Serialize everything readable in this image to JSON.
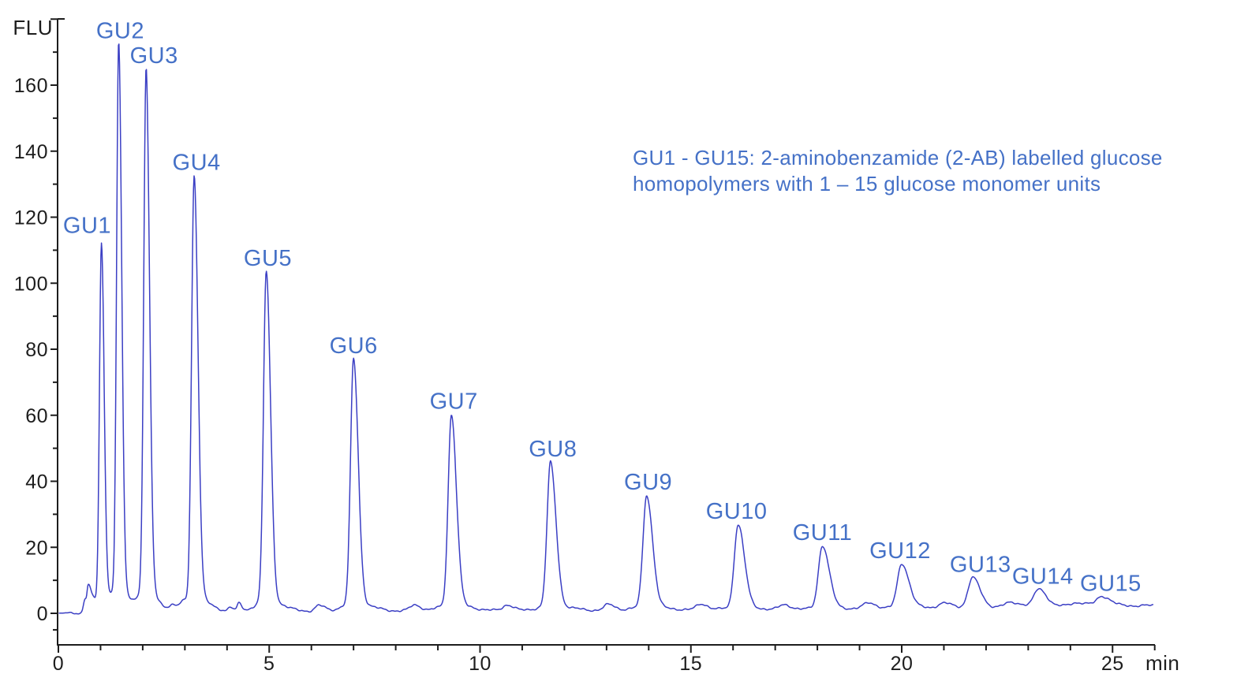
{
  "page": {
    "background_color": "#ffffff"
  },
  "chart_data": {
    "type": "line",
    "kind": "chromatogram",
    "trace_color": "#3b3fc4",
    "axis_color": "#1d1d1d",
    "label_color": "#4571c7",
    "annotation": {
      "line1": "GU1 - GU15: 2-aminobenzamide (2-AB) labelled glucose",
      "line2": "homopolymers with 1 – 15 glucose monomer units",
      "color": "#4571c7"
    },
    "x_axis": {
      "unit_label": "min",
      "min": 0,
      "max": 26,
      "minor_step": 1,
      "major_step": 5,
      "labeled_ticks": [
        0,
        5,
        10,
        15,
        20,
        25
      ],
      "grid": false
    },
    "y_axis": {
      "unit_label": "FLU",
      "min": -5,
      "max": 180,
      "minor_step": 10,
      "major_step": 20,
      "labeled_ticks": [
        0,
        20,
        40,
        60,
        80,
        100,
        120,
        140,
        160
      ],
      "extra_minor_tick": -5,
      "grid": false
    },
    "peaks": [
      {
        "label": "GU1",
        "time_min": 1.02,
        "height_flu": 111.5,
        "sigma_l": 0.045,
        "sigma_r": 0.065,
        "label_dx": -18,
        "label_dy": -7
      },
      {
        "label": "GU2",
        "time_min": 1.43,
        "height_flu": 172.0,
        "sigma_l": 0.048,
        "sigma_r": 0.07,
        "label_dx": 2,
        "label_dy": 0
      },
      {
        "label": "GU3",
        "time_min": 2.08,
        "height_flu": 164.5,
        "sigma_l": 0.055,
        "sigma_r": 0.08,
        "label_dx": 10,
        "label_dy": 0
      },
      {
        "label": "GU4",
        "time_min": 3.22,
        "height_flu": 132.0,
        "sigma_l": 0.06,
        "sigma_r": 0.09,
        "label_dx": 3,
        "label_dy": 0
      },
      {
        "label": "GU5",
        "time_min": 4.93,
        "height_flu": 103.0,
        "sigma_l": 0.065,
        "sigma_r": 0.1,
        "label_dx": 2,
        "label_dy": 0
      },
      {
        "label": "GU6",
        "time_min": 7.0,
        "height_flu": 76.5,
        "sigma_l": 0.07,
        "sigma_r": 0.11,
        "label_dx": 0,
        "label_dy": 0
      },
      {
        "label": "GU7",
        "time_min": 9.32,
        "height_flu": 59.5,
        "sigma_l": 0.075,
        "sigma_r": 0.12,
        "label_dx": 3,
        "label_dy": 0
      },
      {
        "label": "GU8",
        "time_min": 11.67,
        "height_flu": 45.0,
        "sigma_l": 0.08,
        "sigma_r": 0.13,
        "label_dx": 3,
        "label_dy": 0
      },
      {
        "label": "GU9",
        "time_min": 13.95,
        "height_flu": 35.0,
        "sigma_l": 0.085,
        "sigma_r": 0.14,
        "label_dx": 2,
        "label_dy": 0
      },
      {
        "label": "GU10",
        "time_min": 16.12,
        "height_flu": 26.0,
        "sigma_l": 0.09,
        "sigma_r": 0.15,
        "label_dx": -2,
        "label_dy": 0
      },
      {
        "label": "GU11",
        "time_min": 18.12,
        "height_flu": 19.5,
        "sigma_l": 0.095,
        "sigma_r": 0.16,
        "label_dx": 0,
        "label_dy": 0
      },
      {
        "label": "GU12",
        "time_min": 20.0,
        "height_flu": 13.7,
        "sigma_l": 0.1,
        "sigma_r": 0.17,
        "label_dx": -2,
        "label_dy": 0
      },
      {
        "label": "GU13",
        "time_min": 21.68,
        "height_flu": 9.2,
        "sigma_l": 0.105,
        "sigma_r": 0.175,
        "label_dx": 10,
        "label_dy": 0
      },
      {
        "label": "GU14",
        "time_min": 23.25,
        "height_flu": 5.4,
        "sigma_l": 0.11,
        "sigma_r": 0.185,
        "label_dx": 5,
        "label_dy": 0
      },
      {
        "label": "GU15",
        "time_min": 24.75,
        "height_flu": 3.0,
        "sigma_l": 0.12,
        "sigma_r": 0.2,
        "label_dx": 11,
        "label_dy": 0
      }
    ],
    "minor_features": [
      [
        0.63,
        4.0,
        0.035,
        0.03
      ],
      [
        0.705,
        7.2,
        0.028,
        0.045
      ],
      [
        0.78,
        3.2,
        0.04,
        0.07
      ],
      [
        2.72,
        1.4,
        0.07,
        0.09
      ],
      [
        2.95,
        1.0,
        0.06,
        0.09
      ],
      [
        4.08,
        1.2,
        0.05,
        0.06
      ],
      [
        4.28,
        2.3,
        0.04,
        0.07
      ],
      [
        6.18,
        1.7,
        0.09,
        0.14
      ],
      [
        8.45,
        1.8,
        0.11,
        0.15
      ],
      [
        10.65,
        1.8,
        0.11,
        0.15
      ],
      [
        13.05,
        1.8,
        0.11,
        0.16
      ],
      [
        15.25,
        1.9,
        0.12,
        0.16
      ],
      [
        17.22,
        1.5,
        0.12,
        0.17
      ],
      [
        19.22,
        1.8,
        0.13,
        0.17
      ],
      [
        21.0,
        1.4,
        0.13,
        0.18
      ],
      [
        22.6,
        1.3,
        0.15,
        0.25
      ],
      [
        24.15,
        1.1,
        0.15,
        0.25
      ]
    ],
    "baseline_points": [
      [
        0,
        0.05
      ],
      [
        0.5,
        0.1
      ],
      [
        1.2,
        0.55
      ],
      [
        3,
        0.6
      ],
      [
        6,
        0.65
      ],
      [
        9,
        0.75
      ],
      [
        12,
        0.8
      ],
      [
        15,
        0.9
      ],
      [
        18,
        1.0
      ],
      [
        20,
        1.4
      ],
      [
        21.5,
        1.6
      ],
      [
        23,
        1.9
      ],
      [
        24.5,
        2.1
      ],
      [
        26,
        2.35
      ]
    ],
    "noise_amplitude": 0.25
  }
}
